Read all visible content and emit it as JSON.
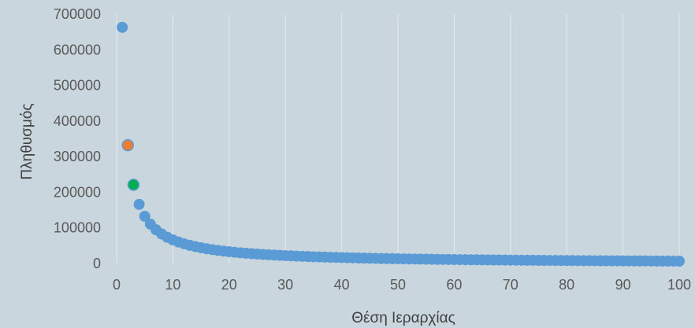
{
  "chart_data": {
    "type": "scatter",
    "title": "",
    "xlabel": "Θέση Ιεραρχίας",
    "ylabel": "Πληθυσμός",
    "xlim": [
      0,
      100
    ],
    "ylim": [
      0,
      700000
    ],
    "x_ticks": [
      0,
      10,
      20,
      30,
      40,
      50,
      60,
      70,
      80,
      90,
      100
    ],
    "y_ticks": [
      0,
      100000,
      200000,
      300000,
      400000,
      500000,
      600000,
      700000
    ],
    "grid": {
      "vertical": true,
      "horizontal": false
    },
    "legend": "none",
    "series": [
      {
        "color": "#5b9bd5",
        "points": [
          [
            1,
            663000
          ],
          [
            4,
            166000
          ],
          [
            5,
            132500
          ],
          [
            6,
            110500
          ],
          [
            7,
            94700
          ],
          [
            8,
            82900
          ],
          [
            9,
            73700
          ],
          [
            10,
            66300
          ],
          [
            11,
            60300
          ],
          [
            12,
            55300
          ],
          [
            13,
            51000
          ],
          [
            14,
            47400
          ],
          [
            15,
            44200
          ],
          [
            16,
            41400
          ],
          [
            17,
            39000
          ],
          [
            18,
            36800
          ],
          [
            19,
            34900
          ],
          [
            20,
            33200
          ],
          [
            21,
            31600
          ],
          [
            22,
            30100
          ],
          [
            23,
            28800
          ],
          [
            24,
            27600
          ],
          [
            25,
            26500
          ],
          [
            26,
            25500
          ],
          [
            27,
            24600
          ],
          [
            28,
            23700
          ],
          [
            29,
            22900
          ],
          [
            30,
            22100
          ],
          [
            31,
            21400
          ],
          [
            32,
            20700
          ],
          [
            33,
            20100
          ],
          [
            34,
            19500
          ],
          [
            35,
            18900
          ],
          [
            36,
            18400
          ],
          [
            37,
            17900
          ],
          [
            38,
            17400
          ],
          [
            39,
            17000
          ],
          [
            40,
            16600
          ],
          [
            41,
            16200
          ],
          [
            42,
            15800
          ],
          [
            43,
            15400
          ],
          [
            44,
            15100
          ],
          [
            45,
            14700
          ],
          [
            46,
            14400
          ],
          [
            47,
            14100
          ],
          [
            48,
            13800
          ],
          [
            49,
            13500
          ],
          [
            50,
            13300
          ],
          [
            51,
            13000
          ],
          [
            52,
            12800
          ],
          [
            53,
            12500
          ],
          [
            54,
            12300
          ],
          [
            55,
            12100
          ],
          [
            56,
            11800
          ],
          [
            57,
            11600
          ],
          [
            58,
            11400
          ],
          [
            59,
            11200
          ],
          [
            60,
            11100
          ],
          [
            61,
            10900
          ],
          [
            62,
            10700
          ],
          [
            63,
            10500
          ],
          [
            64,
            10400
          ],
          [
            65,
            10200
          ],
          [
            66,
            10000
          ],
          [
            67,
            9900
          ],
          [
            68,
            9800
          ],
          [
            69,
            9600
          ],
          [
            70,
            9500
          ],
          [
            71,
            9300
          ],
          [
            72,
            9200
          ],
          [
            73,
            9100
          ],
          [
            74,
            9000
          ],
          [
            75,
            8800
          ],
          [
            76,
            8700
          ],
          [
            77,
            8600
          ],
          [
            78,
            8500
          ],
          [
            79,
            8400
          ],
          [
            80,
            8300
          ],
          [
            81,
            8200
          ],
          [
            82,
            8100
          ],
          [
            83,
            8000
          ],
          [
            84,
            7900
          ],
          [
            85,
            7800
          ],
          [
            86,
            7700
          ],
          [
            87,
            7600
          ],
          [
            88,
            7500
          ],
          [
            89,
            7400
          ],
          [
            90,
            7400
          ],
          [
            91,
            7300
          ],
          [
            92,
            7200
          ],
          [
            93,
            7100
          ],
          [
            94,
            7100
          ],
          [
            95,
            7000
          ],
          [
            96,
            6900
          ],
          [
            97,
            6800
          ],
          [
            98,
            6800
          ],
          [
            99,
            6700
          ],
          [
            100,
            6600
          ]
        ]
      },
      {
        "color": "#ed7d31",
        "points": [
          [
            2,
            332000
          ]
        ]
      },
      {
        "color": "#00b050",
        "points": [
          [
            3,
            221000
          ]
        ]
      }
    ]
  }
}
